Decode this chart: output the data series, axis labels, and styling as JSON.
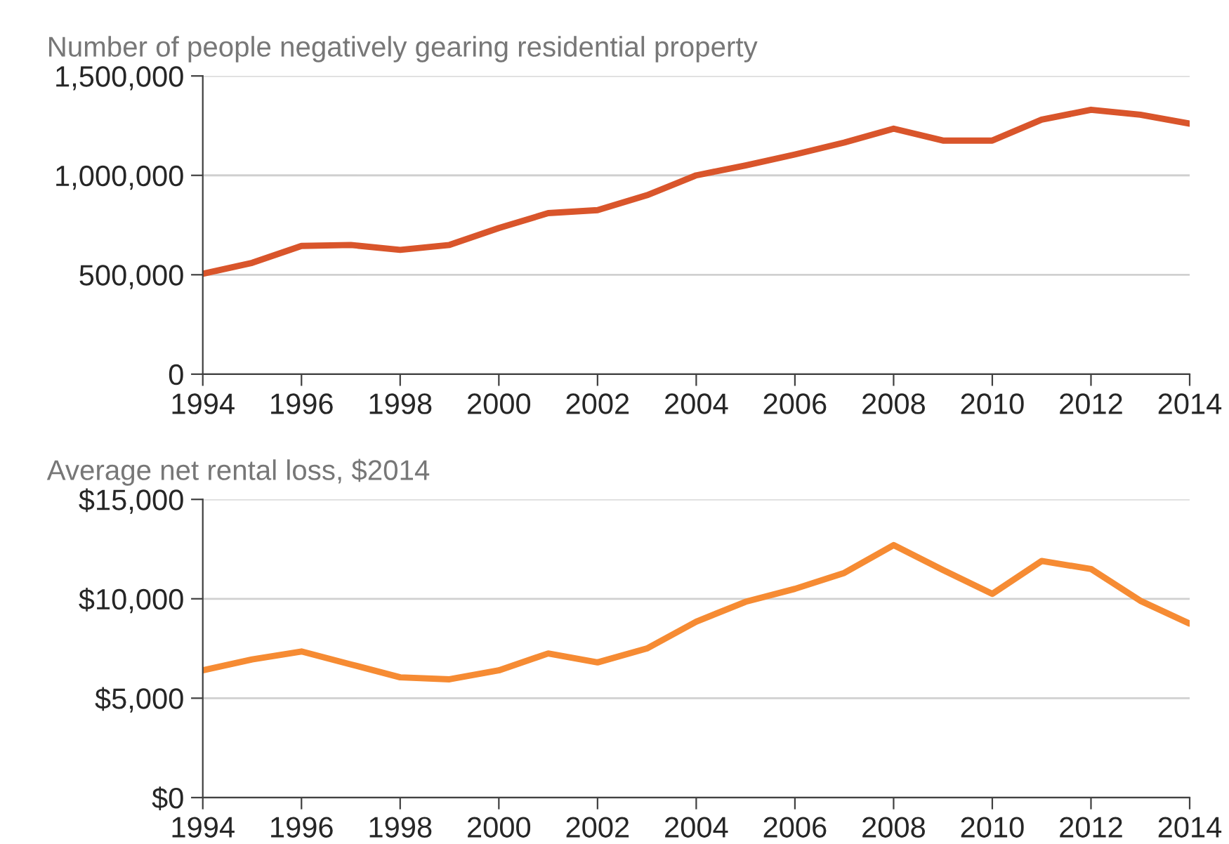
{
  "chart_data": [
    {
      "type": "line",
      "title": "Number of people negatively gearing residential property",
      "x": [
        1994,
        1995,
        1996,
        1997,
        1998,
        1999,
        2000,
        2001,
        2002,
        2003,
        2004,
        2005,
        2006,
        2007,
        2008,
        2009,
        2010,
        2011,
        2012,
        2013,
        2014
      ],
      "xlim": [
        1994,
        2014
      ],
      "xticks": [
        1994,
        1996,
        1998,
        2000,
        2002,
        2004,
        2006,
        2008,
        2010,
        2012,
        2014
      ],
      "ylim": [
        0,
        1500000
      ],
      "yticks": [
        {
          "value": 0,
          "label": "0"
        },
        {
          "value": 500000,
          "label": "500,000"
        },
        {
          "value": 1000000,
          "label": "1,000,000"
        },
        {
          "value": 1500000,
          "label": "1,500,000"
        }
      ],
      "grid": "y",
      "series": [
        {
          "color": "#d9552b",
          "values": [
            505000,
            560000,
            645000,
            650000,
            625000,
            650000,
            735000,
            810000,
            825000,
            900000,
            1000000,
            1050000,
            1105000,
            1165000,
            1235000,
            1175000,
            1175000,
            1280000,
            1330000,
            1305000,
            1260000
          ]
        }
      ]
    },
    {
      "type": "line",
      "title": "Average net rental loss, $2014",
      "x": [
        1994,
        1995,
        1996,
        1997,
        1998,
        1999,
        2000,
        2001,
        2002,
        2003,
        2004,
        2005,
        2006,
        2007,
        2008,
        2009,
        2010,
        2011,
        2012,
        2013,
        2014
      ],
      "xlim": [
        1994,
        2014
      ],
      "xticks": [
        1994,
        1996,
        1998,
        2000,
        2002,
        2004,
        2006,
        2008,
        2010,
        2012,
        2014
      ],
      "ylim": [
        0,
        15000
      ],
      "yticks": [
        {
          "value": 0,
          "label": "$0"
        },
        {
          "value": 5000,
          "label": "$5,000"
        },
        {
          "value": 10000,
          "label": "$10,000"
        },
        {
          "value": 15000,
          "label": "$15,000"
        }
      ],
      "grid": "y",
      "series": [
        {
          "color": "#f68b33",
          "values": [
            6400,
            6950,
            7350,
            6700,
            6050,
            5950,
            6400,
            7250,
            6800,
            7500,
            8850,
            9850,
            10500,
            11300,
            12700,
            11450,
            10250,
            11900,
            11500,
            9900,
            8750
          ]
        }
      ]
    }
  ]
}
